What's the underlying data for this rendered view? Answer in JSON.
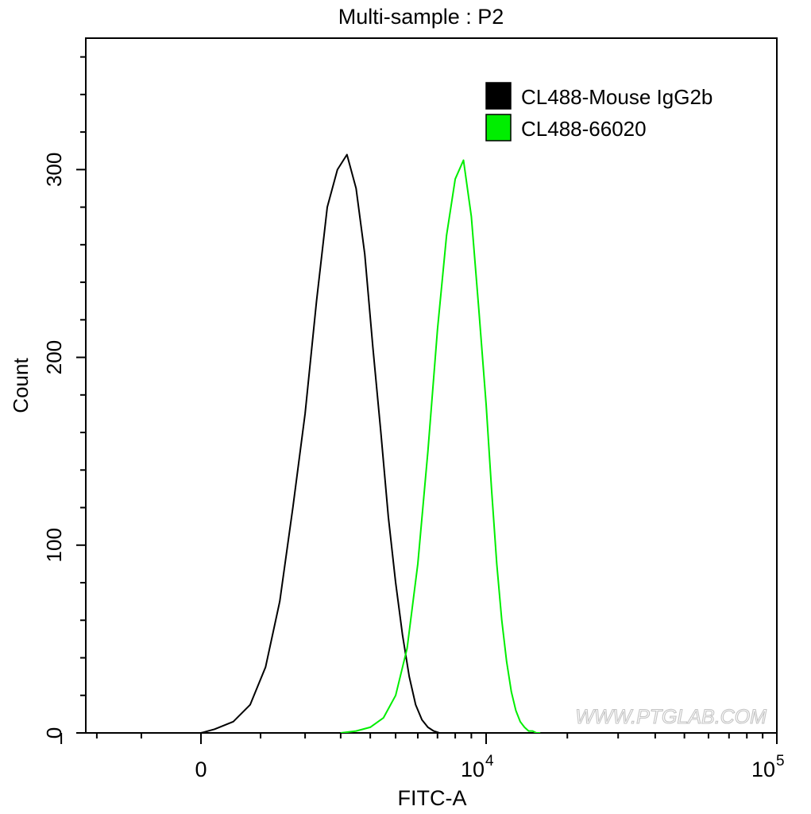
{
  "chart_data": {
    "type": "line",
    "title": "Multi-sample : P2",
    "xlabel": "FITC-A",
    "ylabel": "Count",
    "ylim": [
      0,
      370
    ],
    "yticks": [
      0,
      100,
      200,
      300
    ],
    "ytick_labels": [
      "0",
      "100",
      "200",
      "300"
    ],
    "xscale": "biexponential",
    "xticks": [
      {
        "base": "0",
        "exp": ""
      },
      {
        "base": "10",
        "exp": "4"
      },
      {
        "base": "10",
        "exp": "5"
      }
    ],
    "legend_position": "top-right",
    "watermark": "WWW.PTGLAB.COM",
    "series": [
      {
        "name": "CL488-Mouse IgG2b",
        "color": "#000000",
        "x": [
          0,
          200,
          500,
          800,
          1100,
          1400,
          1700,
          2000,
          2300,
          2600,
          2900,
          3200,
          3500,
          3800,
          4100,
          4400,
          4700,
          5000,
          5300,
          5600,
          5900,
          6200,
          6500,
          6800,
          7100
        ],
        "y": [
          0,
          2,
          6,
          15,
          35,
          70,
          120,
          170,
          230,
          280,
          300,
          308,
          290,
          255,
          205,
          160,
          115,
          80,
          52,
          30,
          15,
          7,
          3,
          1,
          0
        ]
      },
      {
        "name": "CL488-66020",
        "color": "#00ee00",
        "x": [
          3000,
          3500,
          4000,
          4500,
          5000,
          5500,
          6000,
          6500,
          7000,
          7500,
          8000,
          8500,
          9000,
          9500,
          10000,
          10500,
          11000,
          11500,
          12000,
          12500,
          13000,
          13500,
          14000,
          14500,
          15000,
          15500,
          16000
        ],
        "y": [
          0,
          1,
          3,
          8,
          20,
          45,
          90,
          150,
          215,
          265,
          295,
          305,
          275,
          225,
          175,
          130,
          90,
          60,
          38,
          22,
          12,
          6,
          3,
          1,
          1,
          0,
          0
        ]
      }
    ]
  }
}
